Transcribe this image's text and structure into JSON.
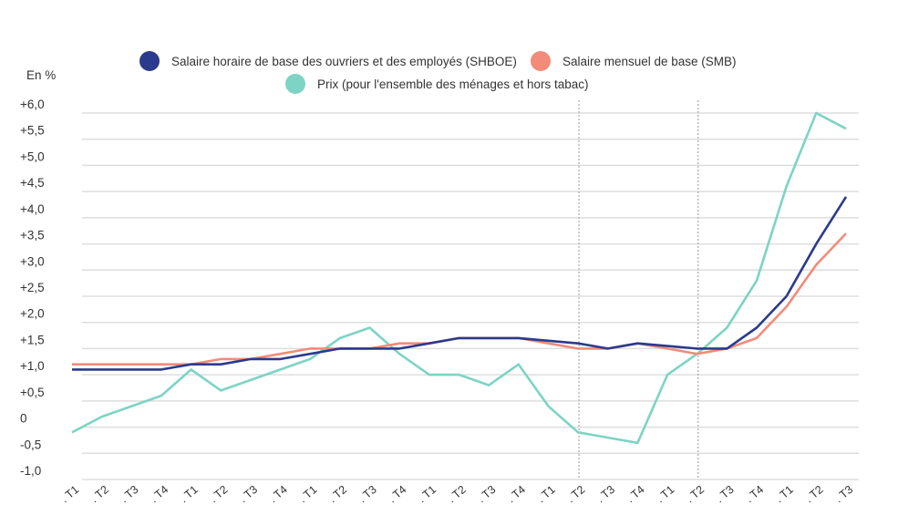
{
  "chart_data": {
    "type": "line",
    "title": "",
    "ylabel": "En %",
    "xlabel": "",
    "ylim": [
      -1.0,
      6.0
    ],
    "grid": true,
    "legend_position": "top",
    "y_ticks": [
      "+6,0",
      "+5,5",
      "+5,0",
      "+4,5",
      "+4,0",
      "+3,5",
      "+3,0",
      "+2,5",
      "+2,0",
      "+1,5",
      "+1,0",
      "+0,5",
      "0",
      "-0,5",
      "-1,0"
    ],
    "y_tick_values": [
      6.0,
      5.5,
      5.0,
      4.5,
      4.0,
      3.5,
      3.0,
      2.5,
      2.0,
      1.5,
      1.0,
      0.5,
      0,
      -0.5,
      -1.0
    ],
    "categories": [
      "T1",
      "T2",
      "T3",
      "T4",
      "T1",
      "T2",
      "T3",
      "T4",
      "T1",
      "T2",
      "T3",
      "T4",
      "T1",
      "T2",
      "T3",
      "T4",
      "T1",
      "T2",
      "T3",
      "T4",
      "T1",
      "T2",
      "T3",
      "T4",
      "T1",
      "T2",
      "T3"
    ],
    "vertical_markers_after_index": [
      17,
      21
    ],
    "series": [
      {
        "name": "Salaire horaire de base des ouvriers et des employés (SHBOE)",
        "color": "#2b3a8c",
        "values": [
          1.1,
          1.1,
          1.1,
          1.1,
          1.2,
          1.2,
          1.3,
          1.3,
          1.4,
          1.5,
          1.5,
          1.5,
          1.6,
          1.7,
          1.7,
          1.7,
          1.65,
          1.6,
          1.5,
          1.6,
          1.55,
          1.5,
          1.5,
          1.9,
          2.5,
          3.5,
          4.4
        ]
      },
      {
        "name": "Salaire mensuel de base (SMB)",
        "color": "#f28b7a",
        "values": [
          1.2,
          1.2,
          1.2,
          1.2,
          1.2,
          1.3,
          1.3,
          1.4,
          1.5,
          1.5,
          1.5,
          1.6,
          1.6,
          1.7,
          1.7,
          1.7,
          1.6,
          1.5,
          1.5,
          1.6,
          1.5,
          1.4,
          1.5,
          1.7,
          2.3,
          3.1,
          3.7
        ]
      },
      {
        "name": "Prix (pour l'ensemble des ménages et hors tabac)",
        "color": "#7dd4c4",
        "values": [
          -0.1,
          0.2,
          0.4,
          0.6,
          1.1,
          0.7,
          0.9,
          1.1,
          1.3,
          1.7,
          1.9,
          1.4,
          1.0,
          1.0,
          0.8,
          1.2,
          0.4,
          -0.1,
          -0.2,
          -0.3,
          1.0,
          1.4,
          1.9,
          2.8,
          4.6,
          6.0,
          5.7
        ]
      }
    ]
  },
  "legend": {
    "shboe": "Salaire horaire de base des ouvriers et des employés (SHBOE)",
    "smb": "Salaire mensuel de base (SMB)",
    "prix": "Prix (pour l'ensemble des ménages et hors tabac)"
  },
  "axis": {
    "unit_label": "En %"
  }
}
